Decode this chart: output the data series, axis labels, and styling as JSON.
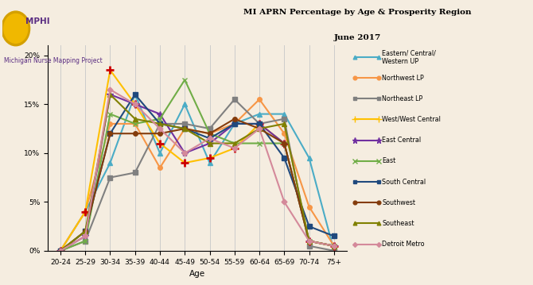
{
  "title_line1": "MI APRN Percentage by Age & Prosperity Region",
  "title_line2": "June 2017",
  "xlabel": "Age",
  "age_groups": [
    "20-24",
    "25-29",
    "30-34",
    "35-39",
    "40-44",
    "45-49",
    "50-54",
    "55-59",
    "60-64",
    "65-69",
    "70-74",
    "75+"
  ],
  "series": [
    {
      "label": "Eastern/ Central/\nWestern UP",
      "color": "#4bacc6",
      "marker": "^",
      "linewidth": 1.5,
      "markersize": 4,
      "values": [
        0,
        4,
        9,
        16,
        10,
        15,
        9,
        13,
        14,
        14,
        9.5,
        0
      ]
    },
    {
      "label": "Northwest LP",
      "color": "#f79646",
      "marker": "o",
      "linewidth": 1.5,
      "markersize": 4,
      "values": [
        0,
        4,
        13,
        13,
        8.5,
        12.5,
        12,
        13,
        15.5,
        12,
        4.5,
        0.5
      ]
    },
    {
      "label": "Northeast LP",
      "color": "#808080",
      "marker": "s",
      "linewidth": 1.5,
      "markersize": 4,
      "values": [
        0,
        1,
        7.5,
        8,
        13,
        13,
        12.5,
        15.5,
        13,
        13.5,
        0.5,
        0
      ]
    },
    {
      "label": "West/West Central",
      "color": "#ffc000",
      "marker": "+",
      "linewidth": 1.5,
      "markersize": 7,
      "markeredgecolor": "#cc0000",
      "markeredgewidth": 2,
      "values": [
        0,
        4,
        18.5,
        15,
        11,
        9,
        9.5,
        10.5,
        13,
        11,
        1,
        0.5
      ]
    },
    {
      "label": "East Central",
      "color": "#7030a0",
      "marker": "*",
      "linewidth": 1.5,
      "markersize": 6,
      "values": [
        0,
        1.5,
        16,
        15,
        14,
        10,
        11,
        13,
        13,
        11,
        1,
        0.5
      ]
    },
    {
      "label": "East",
      "color": "#70ad47",
      "marker": "x",
      "linewidth": 1.5,
      "markersize": 5,
      "values": [
        0,
        1,
        14,
        13,
        13.5,
        17.5,
        12,
        11,
        11,
        11,
        1,
        0.5
      ]
    },
    {
      "label": "South Central",
      "color": "#1f497d",
      "marker": "s",
      "linewidth": 1.5,
      "markersize": 4,
      "values": [
        0,
        2,
        12,
        16,
        13,
        12.5,
        11.5,
        13,
        13,
        9.5,
        2.5,
        1.5
      ]
    },
    {
      "label": "Southwest",
      "color": "#843c0c",
      "marker": "o",
      "linewidth": 1.5,
      "markersize": 4,
      "values": [
        0,
        2,
        12,
        12,
        12,
        12.5,
        12,
        13.5,
        12.5,
        11,
        1,
        0.5
      ]
    },
    {
      "label": "Southeast",
      "color": "#808000",
      "marker": "^",
      "linewidth": 1.5,
      "markersize": 4,
      "values": [
        0,
        2,
        16,
        13.5,
        13,
        12.5,
        11,
        11,
        12.5,
        13,
        1,
        0.5
      ]
    },
    {
      "label": "Detroit Metro",
      "color": "#d4899a",
      "marker": "D",
      "linewidth": 1.5,
      "markersize": 3.5,
      "values": [
        0,
        1.5,
        16.5,
        15,
        12.5,
        10,
        11.5,
        10.5,
        12.5,
        5,
        1,
        0.5
      ]
    }
  ],
  "ylim": [
    0,
    0.21
  ],
  "yticks": [
    0,
    0.05,
    0.1,
    0.15,
    0.2
  ],
  "ytick_labels": [
    "0%",
    "5%",
    "10%",
    "15%",
    "20%"
  ],
  "bg_color": "#f5ede0",
  "plot_bg_color": "#f5ede0",
  "grid_color": "#cccccc",
  "logo_text": "MPHI",
  "logo_subtext": "Michigan Nurse Mapping Project",
  "title_color": "#000000",
  "logo_color": "#5a2d82",
  "logo_box_color": "#f0b800"
}
